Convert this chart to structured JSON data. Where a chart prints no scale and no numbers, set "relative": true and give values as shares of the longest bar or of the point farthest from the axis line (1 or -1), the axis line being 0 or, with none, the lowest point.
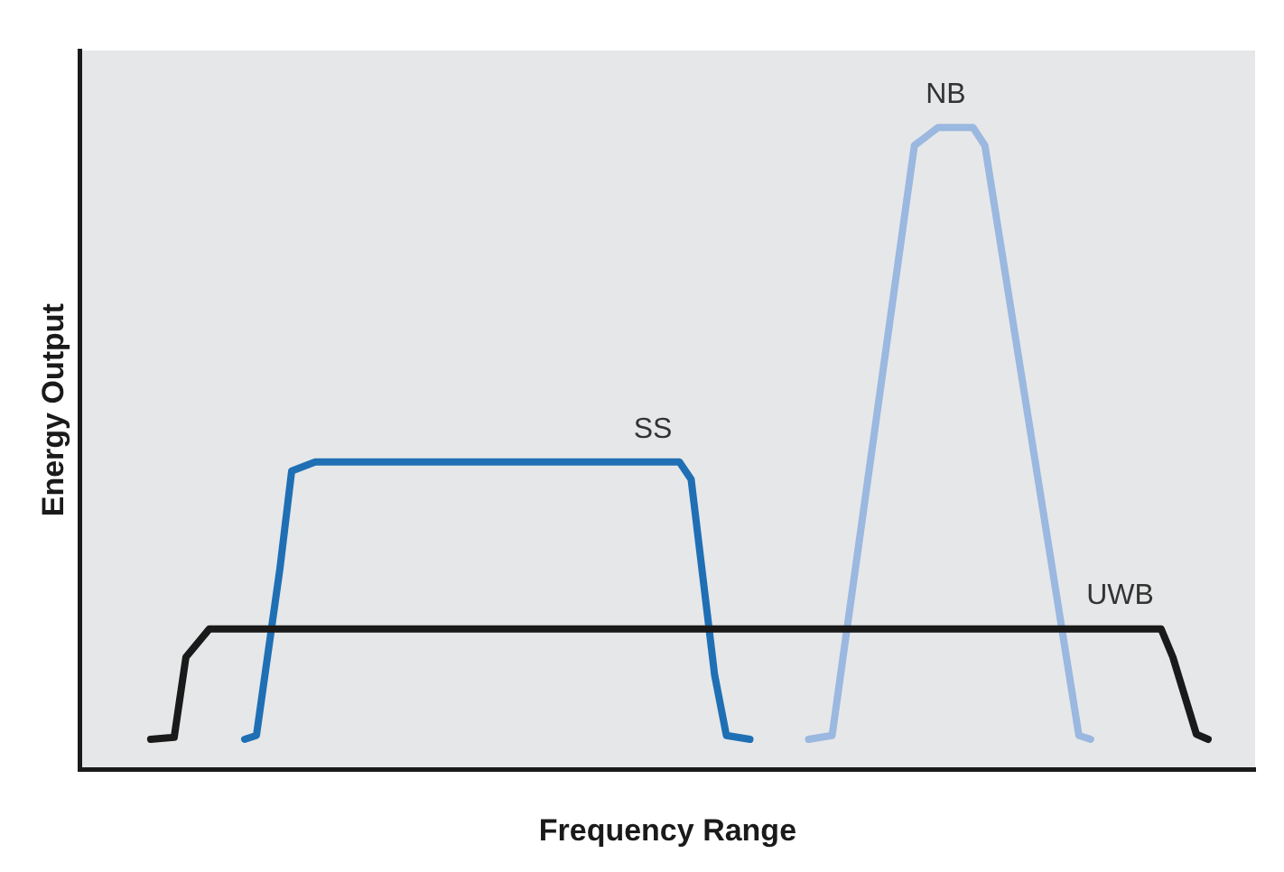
{
  "chart_data": {
    "type": "line",
    "relative": true,
    "xlabel": "Frequency Range",
    "ylabel": "Energy Output",
    "marker": "none",
    "line_style": "solid",
    "categories": [
      null,
      null,
      null,
      null,
      null,
      null,
      null,
      null,
      null,
      null,
      null,
      null,
      null,
      null,
      null,
      null,
      null,
      null,
      null,
      null,
      null,
      null,
      null,
      null,
      null,
      null,
      null,
      null,
      null,
      null,
      null,
      null,
      null,
      null,
      null,
      null,
      null,
      null,
      null,
      null,
      null,
      null,
      null,
      null,
      null,
      null,
      null,
      null,
      null,
      null,
      null,
      null,
      null,
      null,
      null,
      null,
      null,
      null,
      null,
      null,
      null,
      null,
      null,
      null,
      null,
      null,
      null,
      null,
      null,
      null,
      null,
      null,
      null,
      null,
      null,
      null,
      null,
      null,
      null,
      null,
      null,
      null,
      null,
      null,
      null,
      null,
      null,
      null,
      null,
      null,
      null,
      null,
      null,
      null,
      null,
      null,
      null,
      null,
      null,
      null,
      null
    ],
    "series": [
      {
        "name": "UWB",
        "color": "#1a1a1a",
        "values": [
          null,
          null,
          null,
          null,
          null,
          null,
          0.047,
          null,
          0.05,
          0.175,
          null,
          0.219,
          null,
          null,
          null,
          null,
          null,
          null,
          null,
          null,
          null,
          null,
          null,
          null,
          null,
          null,
          null,
          null,
          null,
          null,
          null,
          null,
          null,
          null,
          null,
          null,
          null,
          null,
          null,
          null,
          null,
          null,
          null,
          null,
          null,
          null,
          null,
          null,
          null,
          null,
          null,
          null,
          null,
          null,
          null,
          null,
          null,
          null,
          null,
          null,
          null,
          null,
          null,
          null,
          null,
          null,
          null,
          null,
          null,
          null,
          null,
          null,
          null,
          null,
          null,
          null,
          null,
          null,
          null,
          null,
          null,
          null,
          null,
          null,
          null,
          null,
          null,
          null,
          null,
          null,
          null,
          null,
          0.219,
          0.175,
          null,
          0.055,
          0.047,
          null,
          null,
          null,
          null
        ]
      },
      {
        "name": "SS",
        "color": "#1f6fb5",
        "values": [
          null,
          null,
          null,
          null,
          null,
          null,
          null,
          null,
          null,
          null,
          null,
          null,
          null,
          null,
          0.047,
          0.053,
          null,
          0.313,
          0.465,
          null,
          0.479,
          null,
          null,
          null,
          null,
          null,
          null,
          null,
          null,
          null,
          null,
          null,
          null,
          null,
          null,
          null,
          null,
          null,
          null,
          null,
          null,
          null,
          null,
          null,
          null,
          null,
          null,
          null,
          null,
          null,
          null,
          0.479,
          0.452,
          null,
          0.147,
          0.053,
          null,
          0.047,
          null,
          null,
          null,
          null,
          null,
          null,
          null,
          null,
          null,
          null,
          null,
          null,
          null,
          null,
          null,
          null,
          null,
          null,
          null,
          null,
          null,
          null,
          null,
          null,
          null,
          null,
          null,
          null,
          null,
          null,
          null,
          null,
          null,
          null,
          null,
          null,
          null,
          null,
          null,
          null,
          null,
          null,
          null
        ]
      },
      {
        "name": "NB",
        "color": "#9ab8e0",
        "values": [
          null,
          null,
          null,
          null,
          null,
          null,
          null,
          null,
          null,
          null,
          null,
          null,
          null,
          null,
          null,
          null,
          null,
          null,
          null,
          null,
          null,
          null,
          null,
          null,
          null,
          null,
          null,
          null,
          null,
          null,
          null,
          null,
          null,
          null,
          null,
          null,
          null,
          null,
          null,
          null,
          null,
          null,
          null,
          null,
          null,
          null,
          null,
          null,
          null,
          null,
          null,
          null,
          null,
          null,
          null,
          null,
          null,
          null,
          null,
          null,
          null,
          null,
          0.047,
          null,
          0.053,
          null,
          null,
          null,
          null,
          null,
          null,
          0.972,
          null,
          1,
          null,
          null,
          1,
          0.972,
          null,
          null,
          null,
          null,
          null,
          null,
          null,
          0.053,
          0.047,
          null,
          null,
          null,
          null,
          null,
          null,
          null,
          null,
          null,
          null,
          null,
          null,
          null,
          null
        ]
      }
    ]
  }
}
